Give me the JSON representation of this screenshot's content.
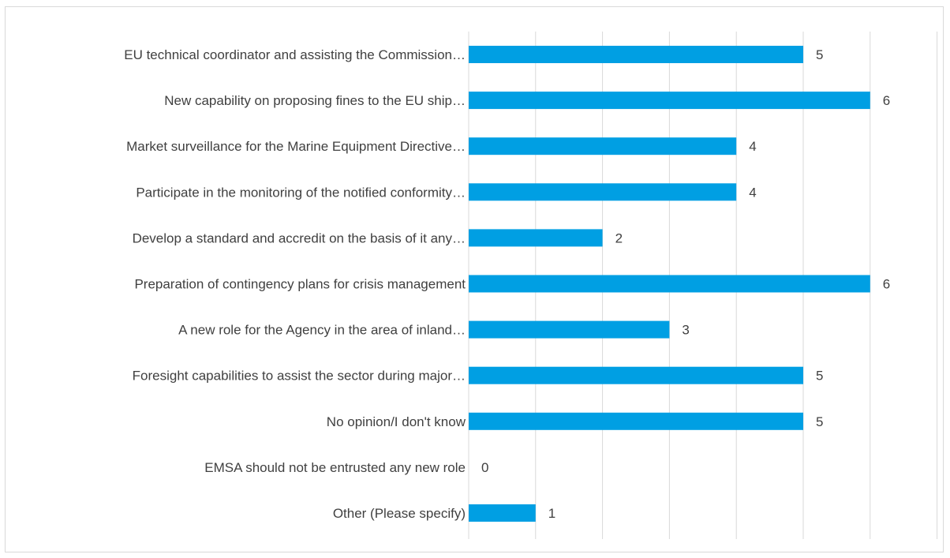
{
  "chart_data": {
    "type": "bar",
    "orientation": "horizontal",
    "categories": [
      "EU technical coordinator and assisting the Commission…",
      "New capability on proposing fines to the EU ship…",
      "Market surveillance for the Marine Equipment Directive…",
      "Participate in the monitoring of the notified conformity…",
      "Develop a standard and accredit on the basis of it any…",
      "Preparation of contingency plans for crisis management",
      "A new role for the Agency in the area of inland…",
      "Foresight capabilities to assist the sector during major…",
      "No opinion/I don't know",
      "EMSA should not be entrusted any new role",
      "Other (Please specify)"
    ],
    "values": [
      5,
      6,
      4,
      4,
      2,
      6,
      3,
      5,
      5,
      0,
      1
    ],
    "value_labels": [
      "5",
      "6",
      "4",
      "4",
      "2",
      "6",
      "3",
      "5",
      "5",
      "0",
      "1"
    ],
    "title": "",
    "xlabel": "",
    "ylabel": "",
    "xlim": [
      0,
      7
    ],
    "grid": true,
    "legend": "none",
    "bar_color": "#009fe3",
    "grid_color": "#d9d9d9",
    "text_color": "#404040"
  }
}
